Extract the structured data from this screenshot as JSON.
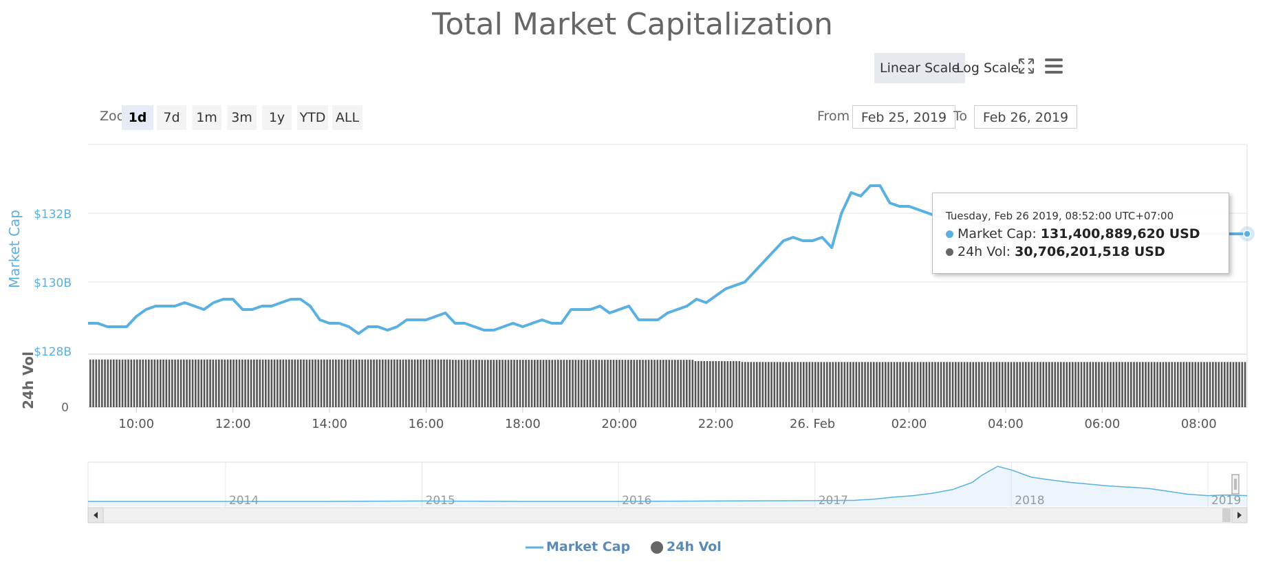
{
  "title": "Total Market Capitalization",
  "scale_buttons": {
    "linear": "Linear Scale",
    "log": "Log Scale",
    "active": "linear"
  },
  "icons": {
    "fullscreen": "fullscreen-icon",
    "menu": "hamburger-menu-icon"
  },
  "zoom": {
    "label": "Zoom",
    "buttons": [
      "1d",
      "7d",
      "1m",
      "3m",
      "1y",
      "YTD",
      "ALL"
    ],
    "active": "1d"
  },
  "range": {
    "from_label": "From",
    "from_value": "Feb 25, 2019",
    "to_label": "To",
    "to_value": "Feb 26, 2019"
  },
  "tooltip": {
    "header": "Tuesday, Feb 26 2019, 08:52:00 UTC+07:00",
    "mc_label": "Market Cap:",
    "mc_value": "131,400,889,620 USD",
    "vol_label": "24h Vol:",
    "vol_value": "30,706,201,518 USD"
  },
  "legend": {
    "mc": "Market Cap",
    "vol": "24h Vol"
  },
  "colors": {
    "market_cap": "#5ab0e0",
    "volume": "#555555",
    "axis_label": "#5ab0e0"
  },
  "chart_data": {
    "type": "line",
    "ylabel": "Market Cap",
    "ylabel2": "24h Vol",
    "y_ticks": [
      "$128B",
      "$130B",
      "$132B"
    ],
    "y_tick_values": [
      128,
      130,
      132
    ],
    "y2_ticks": [
      "0"
    ],
    "ylim": [
      127.9,
      134
    ],
    "x_ticks": [
      "10:00",
      "12:00",
      "14:00",
      "16:00",
      "18:00",
      "20:00",
      "22:00",
      "26. Feb",
      "02:00",
      "04:00",
      "06:00",
      "08:00"
    ],
    "x_tick_hours": [
      1,
      3,
      5,
      7,
      9,
      11,
      13,
      15,
      17,
      19,
      21,
      23
    ],
    "x_range_hours": [
      0,
      24
    ],
    "series": [
      {
        "name": "Market Cap",
        "x_hours": [
          0.0,
          0.2,
          0.4,
          0.6,
          0.8,
          1.0,
          1.2,
          1.4,
          1.6,
          1.8,
          2.0,
          2.2,
          2.4,
          2.6,
          2.8,
          3.0,
          3.2,
          3.4,
          3.6,
          3.8,
          4.0,
          4.2,
          4.4,
          4.6,
          4.8,
          5.0,
          5.2,
          5.4,
          5.6,
          5.8,
          6.0,
          6.2,
          6.4,
          6.6,
          6.8,
          7.0,
          7.2,
          7.4,
          7.6,
          7.8,
          8.0,
          8.2,
          8.4,
          8.6,
          8.8,
          9.0,
          9.2,
          9.4,
          9.6,
          9.8,
          10.0,
          10.2,
          10.4,
          10.6,
          10.8,
          11.0,
          11.2,
          11.4,
          11.6,
          11.8,
          12.0,
          12.2,
          12.4,
          12.6,
          12.8,
          13.0,
          13.2,
          13.4,
          13.6,
          13.8,
          14.0,
          14.2,
          14.4,
          14.6,
          14.8,
          15.0,
          15.2,
          15.4,
          15.6,
          15.8,
          16.0,
          16.2,
          16.4,
          16.6,
          16.8,
          17.0,
          17.2,
          17.4,
          17.6,
          17.8,
          18.0,
          18.2,
          18.4,
          18.6,
          18.8,
          19.0,
          19.2,
          19.4,
          19.6,
          19.8,
          20.0,
          20.2,
          20.4,
          20.6,
          20.8,
          21.0,
          21.2,
          21.4,
          21.6,
          21.8,
          22.0,
          22.2,
          22.4,
          22.6,
          22.8,
          23.0,
          23.2,
          23.4,
          23.6,
          23.8,
          24.0
        ],
        "y": [
          128.8,
          128.8,
          128.7,
          128.7,
          128.7,
          129.0,
          129.2,
          129.3,
          129.3,
          129.3,
          129.4,
          129.3,
          129.2,
          129.4,
          129.5,
          129.5,
          129.2,
          129.2,
          129.3,
          129.3,
          129.4,
          129.5,
          129.5,
          129.3,
          128.9,
          128.8,
          128.8,
          128.7,
          128.5,
          128.7,
          128.7,
          128.6,
          128.7,
          128.9,
          128.9,
          128.9,
          129.0,
          129.1,
          128.8,
          128.8,
          128.7,
          128.6,
          128.6,
          128.7,
          128.8,
          128.7,
          128.8,
          128.9,
          128.8,
          128.8,
          129.2,
          129.2,
          129.2,
          129.3,
          129.1,
          129.2,
          129.3,
          128.9,
          128.9,
          128.9,
          129.1,
          129.2,
          129.3,
          129.5,
          129.4,
          129.6,
          129.8,
          129.9,
          130.0,
          130.3,
          130.6,
          130.9,
          131.2,
          131.3,
          131.2,
          131.2,
          131.3,
          131.0,
          132.0,
          132.6,
          132.5,
          132.8,
          132.8,
          132.3,
          132.2,
          132.2,
          132.1,
          132.0,
          131.9,
          131.9,
          131.8,
          131.8,
          131.7,
          131.7,
          131.6,
          131.6,
          131.6,
          131.5,
          131.5,
          131.5,
          131.5,
          131.5,
          131.5,
          131.5,
          131.5,
          131.5,
          131.5,
          131.5,
          131.4,
          131.4,
          131.4,
          131.4,
          131.4,
          131.4,
          131.4,
          131.4,
          131.4,
          131.4,
          131.4,
          131.4,
          131.4
        ]
      },
      {
        "name": "24h Vol",
        "values_by_segment": [
          {
            "from_hour": 0,
            "to_hour": 7.5,
            "value": 32.4
          },
          {
            "from_hour": 7.5,
            "to_hour": 12.5,
            "value": 32.2
          },
          {
            "from_hour": 12.5,
            "to_hour": 13.5,
            "value": 31.3
          },
          {
            "from_hour": 13.5,
            "to_hour": 24,
            "value": 30.7
          }
        ],
        "ylim": [
          0,
          36
        ]
      }
    ],
    "navigator": {
      "x_labels": [
        "2014",
        "2015",
        "2016",
        "2017",
        "2018",
        "2019"
      ],
      "x_label_years": [
        2014,
        2015,
        2016,
        2017,
        2018,
        2019
      ],
      "year_range": [
        2013.3,
        2019.2
      ],
      "values": [
        0.02,
        0.02,
        0.02,
        0.03,
        0.02,
        0.02,
        0.03,
        0.04,
        0.05,
        0.08,
        0.14,
        0.18,
        0.25,
        0.35,
        0.55,
        0.75,
        1.0,
        0.9,
        0.7,
        0.62,
        0.55,
        0.5,
        0.45,
        0.42,
        0.38,
        0.3,
        0.22,
        0.18,
        0.2,
        0.18
      ],
      "value_years": [
        2013.3,
        2014.0,
        2014.5,
        2015.0,
        2015.5,
        2016.0,
        2016.5,
        2017.0,
        2017.2,
        2017.3,
        2017.4,
        2017.5,
        2017.6,
        2017.7,
        2017.8,
        2017.85,
        2017.93,
        2018.0,
        2018.1,
        2018.2,
        2018.3,
        2018.4,
        2018.5,
        2018.6,
        2018.7,
        2018.8,
        2018.9,
        2019.0,
        2019.1,
        2019.2
      ]
    }
  }
}
